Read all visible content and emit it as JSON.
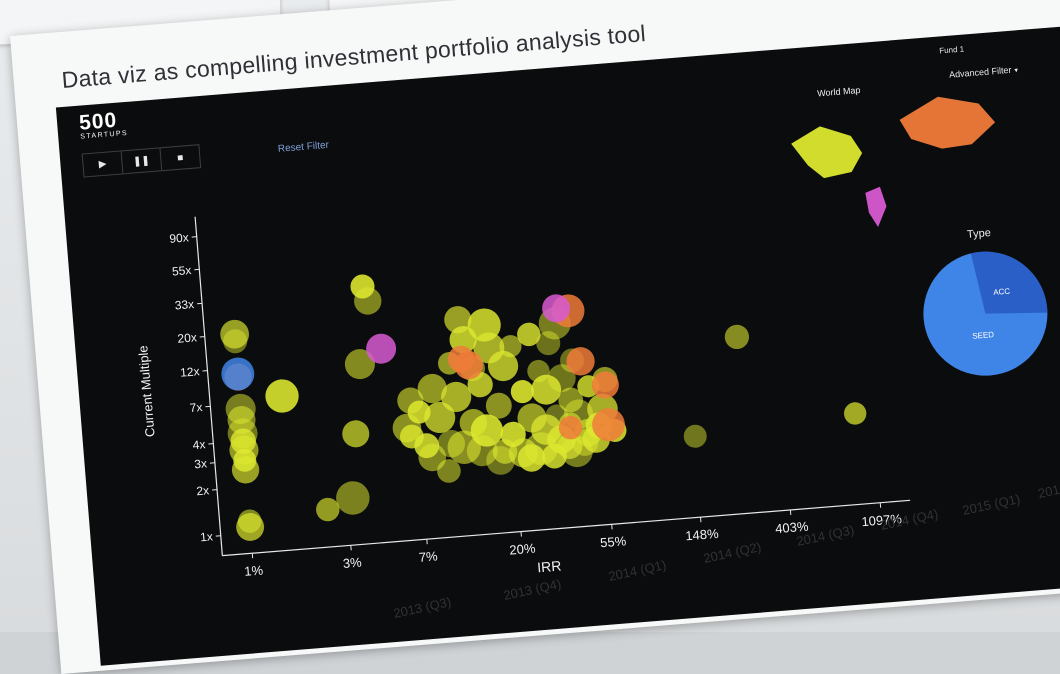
{
  "title": "Data viz as compelling investment portfolio analysis tool",
  "brand": {
    "name": "500",
    "sub": "STARTUPS"
  },
  "fund": "Fund 1",
  "advanced_filter": "Advanced Filter",
  "controls": {
    "play": "▶",
    "pause": "❚❚",
    "stop": "■"
  },
  "reset_filter": "Reset Filter",
  "world_map_label": "World Map",
  "type_label": "Type",
  "type_slices": [
    "ACC",
    "SEED"
  ],
  "colors": {
    "yellow": "#dde82f",
    "orange": "#f07b3a",
    "magenta": "#d85ad3",
    "blue": "#3f85e8",
    "darkblue": "#2a5fc8"
  },
  "chart_data": {
    "type": "scatter",
    "xlabel": "IRR",
    "ylabel": "Current Multiple",
    "x_ticks": [
      "1%",
      "3%",
      "7%",
      "20%",
      "55%",
      "148%",
      "403%",
      "1097%"
    ],
    "y_ticks": [
      "1x",
      "2x",
      "3x",
      "4x",
      "7x",
      "12x",
      "20x",
      "33x",
      "55x",
      "90x"
    ],
    "series": [
      {
        "color": "yellow",
        "points": [
          [
            1,
            1.1
          ],
          [
            1,
            1.2
          ],
          [
            1,
            2.6
          ],
          [
            1,
            3.0
          ],
          [
            1,
            3.5
          ],
          [
            1,
            4
          ],
          [
            1,
            4.5
          ],
          [
            1,
            5.5
          ],
          [
            1,
            6.5
          ],
          [
            1,
            20
          ],
          [
            1,
            18
          ],
          [
            1.6,
            7.5
          ],
          [
            2.4,
            1.3
          ],
          [
            3.2,
            1.5
          ],
          [
            3.5,
            3.9
          ],
          [
            3.9,
            11
          ],
          [
            4.3,
            35
          ],
          [
            4.5,
            28
          ],
          [
            6.2,
            4
          ],
          [
            6.5,
            3.5
          ],
          [
            6.6,
            6
          ],
          [
            7.2,
            5
          ],
          [
            7.6,
            3
          ],
          [
            8,
            2.5
          ],
          [
            8.5,
            7
          ],
          [
            9,
            4.5
          ],
          [
            9.5,
            2
          ],
          [
            10,
            3
          ],
          [
            10.5,
            10
          ],
          [
            11,
            6
          ],
          [
            11.5,
            2.8
          ],
          [
            12,
            19
          ],
          [
            12.5,
            14
          ],
          [
            13,
            4
          ],
          [
            13.5,
            9
          ],
          [
            14,
            2.6
          ],
          [
            14.5,
            7
          ],
          [
            15,
            3.5
          ],
          [
            16,
            17
          ],
          [
            16.5,
            12
          ],
          [
            17,
            2.2
          ],
          [
            17.5,
            5
          ],
          [
            18,
            2.5
          ],
          [
            19,
            9
          ],
          [
            20,
            3.2
          ],
          [
            21,
            12
          ],
          [
            22,
            2.4
          ],
          [
            23,
            6
          ],
          [
            24,
            2.2
          ],
          [
            25,
            4
          ],
          [
            26,
            14
          ],
          [
            27,
            2.5
          ],
          [
            28,
            8
          ],
          [
            29,
            3.3
          ],
          [
            30,
            6
          ],
          [
            31,
            2.2
          ],
          [
            32,
            12
          ],
          [
            33,
            4
          ],
          [
            34,
            2.8
          ],
          [
            35,
            16
          ],
          [
            36,
            7
          ],
          [
            37,
            2.5
          ],
          [
            38,
            3.5
          ],
          [
            39,
            5
          ],
          [
            40,
            2.3
          ],
          [
            41,
            9
          ],
          [
            42,
            4
          ],
          [
            44,
            2.6
          ],
          [
            46,
            3
          ],
          [
            48,
            6
          ],
          [
            50,
            2.7
          ],
          [
            52,
            3.3
          ],
          [
            55,
            4.2
          ],
          [
            58,
            6.5
          ],
          [
            62,
            3
          ],
          [
            150,
            2.5
          ],
          [
            260,
            10.5
          ],
          [
            900,
            2.9
          ]
        ]
      },
      {
        "color": "orange",
        "points": [
          [
            1,
            10.5
          ],
          [
            12,
            10.5
          ],
          [
            13,
            9.5
          ],
          [
            41,
            19
          ],
          [
            45,
            8.8
          ],
          [
            58,
            6
          ],
          [
            38,
            3.3
          ],
          [
            58,
            3.3
          ]
        ]
      },
      {
        "color": "magenta",
        "points": [
          [
            5,
            13.5
          ],
          [
            36,
            20
          ]
        ]
      },
      {
        "color": "blue",
        "points": [
          [
            1,
            11
          ]
        ]
      }
    ]
  },
  "below_axis": [
    "2013 (Q3)",
    "2013 (Q4)",
    "2014 (Q1)",
    "2014 (Q2)",
    "2014 (Q3)",
    "2014 (Q4)",
    "2015 (Q1)",
    "201"
  ]
}
